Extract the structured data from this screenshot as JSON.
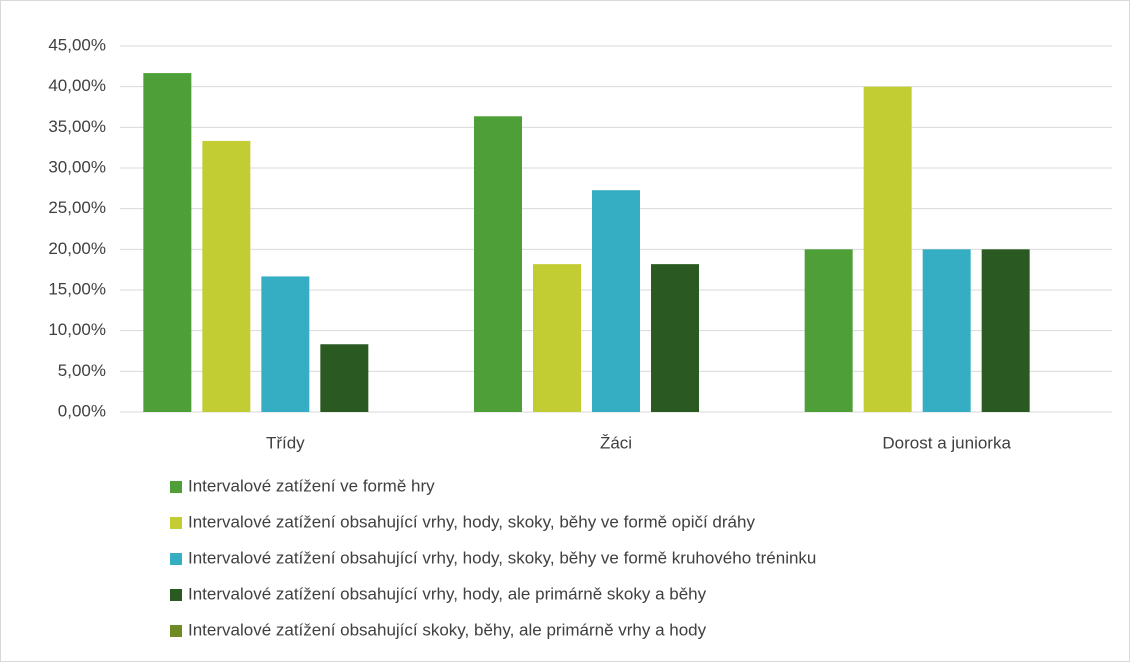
{
  "chart_data": {
    "type": "bar",
    "categories": [
      "Třídy",
      "Žáci",
      "Dorost a juniorka"
    ],
    "series": [
      {
        "name": "Intervalové zatížení ve formě hry",
        "color": "#4f9f38",
        "values": [
          41.67,
          36.36,
          20
        ]
      },
      {
        "name": "Intervalové zatížení obsahující vrhy, hody, skoky, běhy ve formě opičí dráhy",
        "color": "#c2cd34",
        "values": [
          33.33,
          18.18,
          40
        ]
      },
      {
        "name": "Intervalové zatížení obsahující vrhy, hody, skoky, běhy ve formě kruhového tréninku",
        "color": "#35aec4",
        "values": [
          16.67,
          27.27,
          20
        ]
      },
      {
        "name": "Intervalové zatížení obsahující vrhy, hody, ale primárně skoky a běhy",
        "color": "#2a5a22",
        "values": [
          8.33,
          18.18,
          20
        ]
      },
      {
        "name": "Intervalové zatížení obsahující skoky, běhy, ale primárně vrhy a hody",
        "color": "#6e8b23",
        "values": [
          0,
          0,
          0
        ]
      }
    ],
    "ylim": [
      0,
      45
    ],
    "yticks": [
      {
        "value": 0,
        "label": "0,00%"
      },
      {
        "value": 5,
        "label": "5,00%"
      },
      {
        "value": 10,
        "label": "10,00%"
      },
      {
        "value": 15,
        "label": "15,00%"
      },
      {
        "value": 20,
        "label": "20,00%"
      },
      {
        "value": 25,
        "label": "25,00%"
      },
      {
        "value": 30,
        "label": "30,00%"
      },
      {
        "value": 35,
        "label": "35,00%"
      },
      {
        "value": 40,
        "label": "40,00%"
      },
      {
        "value": 45,
        "label": "45,00%"
      }
    ],
    "grid": true
  }
}
